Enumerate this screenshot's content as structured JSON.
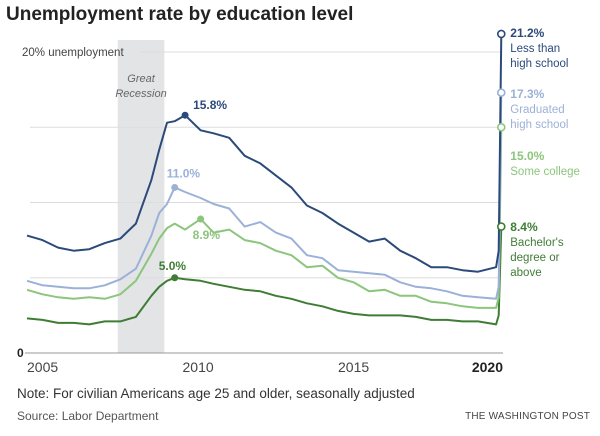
{
  "title": "Unemployment rate by education level",
  "note": "Note: For civilian Americans age 25 and older, seasonally adjusted",
  "source": "Source: Labor Department",
  "credit": "THE WASHINGTON POST",
  "chart_data": {
    "type": "line",
    "ylim": [
      0,
      21.2
    ],
    "yticks": [
      0,
      5,
      10,
      15,
      20
    ],
    "ytick_labels": {
      "top": "20% unemployment",
      "zero": "0"
    },
    "xticks": [
      "2005",
      "2010",
      "2015",
      "2020"
    ],
    "grid": true,
    "shaded_region": {
      "label": "Great Recession",
      "start": "2007-12",
      "end": "2009-06",
      "color": "#e3e4e6"
    },
    "dates": [
      "2005-01",
      "2005-07",
      "2006-01",
      "2006-07",
      "2007-01",
      "2007-07",
      "2008-01",
      "2008-07",
      "2009-01",
      "2009-04",
      "2009-07",
      "2009-10",
      "2010-02",
      "2010-08",
      "2011-01",
      "2011-07",
      "2012-01",
      "2012-07",
      "2013-01",
      "2013-07",
      "2014-01",
      "2014-07",
      "2015-01",
      "2015-07",
      "2016-01",
      "2016-07",
      "2017-01",
      "2017-07",
      "2018-01",
      "2018-07",
      "2019-01",
      "2019-07",
      "2020-02",
      "2020-03",
      "2020-04"
    ],
    "series": [
      {
        "name": "Less than high school",
        "color": "#2b4a7a",
        "end_label": "21.2%",
        "peak_label": "15.8%",
        "peak_date": "2010-02",
        "values": [
          7.8,
          7.5,
          7.0,
          6.8,
          6.9,
          7.3,
          7.6,
          8.6,
          11.5,
          13.5,
          15.3,
          15.4,
          15.8,
          14.8,
          14.6,
          14.3,
          13.1,
          12.6,
          11.8,
          11.0,
          9.8,
          9.3,
          8.6,
          8.0,
          7.4,
          7.6,
          6.8,
          6.3,
          5.7,
          5.7,
          5.5,
          5.4,
          5.7,
          6.8,
          21.2
        ]
      },
      {
        "name": "Graduated high school",
        "color": "#9cb1d8",
        "end_label": "17.3%",
        "peak_label": "11.0%",
        "peak_date": "2009-10",
        "values": [
          4.8,
          4.5,
          4.4,
          4.3,
          4.3,
          4.5,
          4.9,
          5.6,
          7.8,
          9.3,
          9.9,
          11.0,
          10.7,
          10.3,
          9.9,
          9.6,
          8.4,
          8.7,
          8.0,
          7.6,
          6.5,
          6.3,
          5.5,
          5.4,
          5.3,
          5.2,
          4.7,
          4.4,
          4.3,
          4.1,
          3.8,
          3.7,
          3.6,
          4.4,
          17.3
        ]
      },
      {
        "name": "Some college",
        "color": "#8cc57c",
        "end_label": "15.0%",
        "peak_label": "8.9%",
        "peak_date": "2010-08",
        "values": [
          4.2,
          3.9,
          3.7,
          3.6,
          3.7,
          3.6,
          3.9,
          4.8,
          6.6,
          7.6,
          8.3,
          8.6,
          8.2,
          8.9,
          8.0,
          8.2,
          7.5,
          7.3,
          6.8,
          6.5,
          5.7,
          5.8,
          5.0,
          4.7,
          4.1,
          4.2,
          3.8,
          3.8,
          3.4,
          3.3,
          3.1,
          3.0,
          3.0,
          3.7,
          15.0
        ]
      },
      {
        "name": "Bachelor's degree or above",
        "color": "#3f7d34",
        "end_label": "8.4%",
        "peak_label": "5.0%",
        "peak_date": "2009-10",
        "values": [
          2.3,
          2.2,
          2.0,
          2.0,
          1.9,
          2.1,
          2.1,
          2.4,
          3.8,
          4.4,
          4.8,
          5.0,
          4.9,
          4.8,
          4.6,
          4.4,
          4.2,
          4.1,
          3.8,
          3.6,
          3.3,
          3.1,
          2.8,
          2.6,
          2.5,
          2.5,
          2.5,
          2.4,
          2.2,
          2.2,
          2.1,
          2.1,
          1.9,
          2.5,
          8.4
        ]
      }
    ],
    "end_labels": [
      "Less than high school",
      "Graduated high school",
      "Some college",
      "Bachelor's degree or above"
    ]
  }
}
